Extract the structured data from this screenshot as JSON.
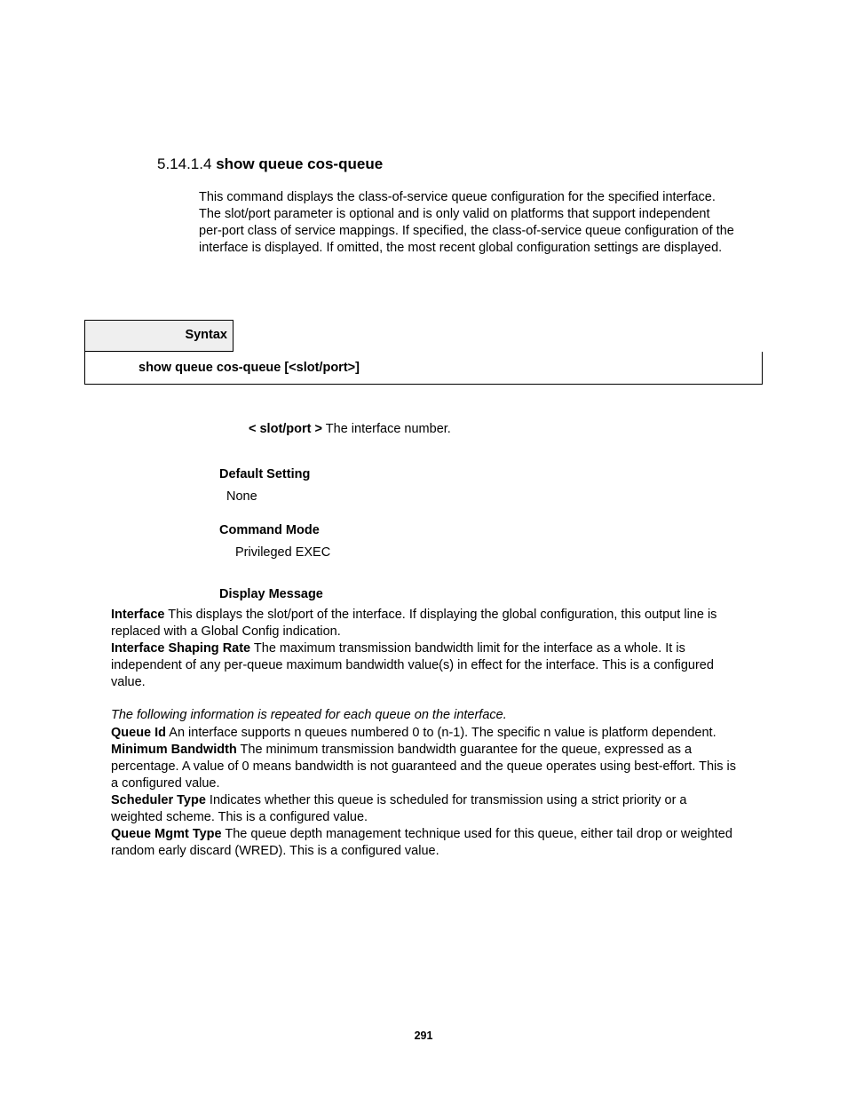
{
  "heading": {
    "number": "5.14.1.4",
    "title": "show queue cos-queue"
  },
  "intro": "This command displays the class-of-service queue configuration for the specified interface. The slot/port parameter is optional and is only valid on platforms that support independent per-port class of service mappings. If specified, the class-of-service queue configuration of the interface is displayed. If omitted, the most recent global configuration settings are displayed.",
  "syntax": {
    "label": "Syntax",
    "command": "show queue cos-queue [<slot/port>]"
  },
  "param": {
    "name": "< slot/port >",
    "desc": " The interface number."
  },
  "settings": {
    "default_label": "Default Setting",
    "default_value": "None",
    "mode_label": "Command Mode",
    "mode_value": "Privileged EXEC"
  },
  "display": {
    "header": "Display Message",
    "interface_label": "Interface",
    "interface_text": " This displays the slot/port of the interface. If displaying the global configuration, this output line is replaced with a Global Config indication.",
    "shaping_label": "Interface Shaping Rate",
    "shaping_text": " The maximum transmission bandwidth limit for the interface as a whole. It is independent of any per-queue maximum bandwidth value(s) in effect for the interface. This is a configured value.",
    "repeat_note": "The following information is repeated for each queue on the interface.",
    "queueid_label": "Queue Id",
    "queueid_text": " An interface supports n queues numbered 0 to (n-1). The specific n value is platform dependent.",
    "minbw_label": "Minimum Bandwidth",
    "minbw_text": " The minimum transmission bandwidth guarantee for the queue, expressed as a percentage. A value of 0 means bandwidth is not guaranteed and the queue operates using best-effort. This is a configured value.",
    "sched_label": "Scheduler Type",
    "sched_text": " Indicates whether this queue is scheduled for transmission using a strict priority or a weighted scheme. This is a configured value.",
    "qmgmt_label": "Queue Mgmt Type",
    "qmgmt_text": " The queue depth management technique used for this queue, either tail drop or weighted random early discard (WRED). This is a configured value."
  },
  "page_number": "291"
}
